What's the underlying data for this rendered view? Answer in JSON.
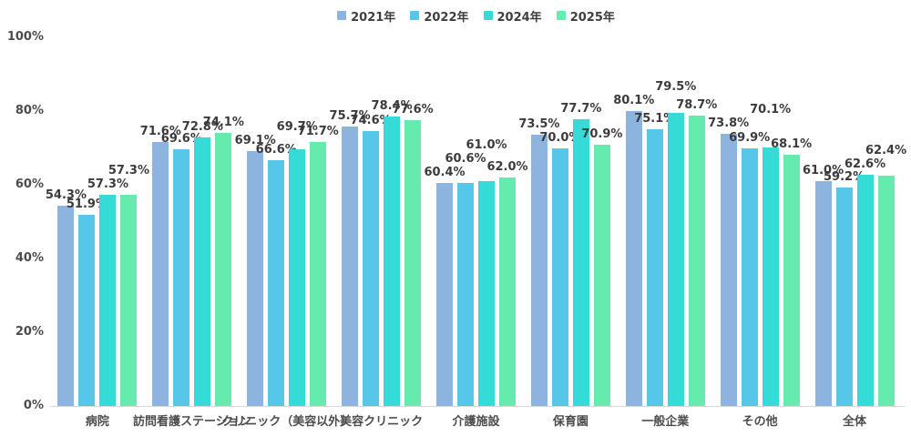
{
  "chart_data": {
    "type": "bar",
    "title": "",
    "categories": [
      "病院",
      "訪問看護ステーション",
      "クリニック（美容以外）",
      "美容クリニック",
      "介護施設",
      "保育園",
      "一般企業",
      "その他",
      "全体"
    ],
    "series": [
      {
        "name": "2021年",
        "color": "#8DB3DF",
        "values": [
          54.3,
          71.6,
          69.1,
          75.7,
          60.4,
          73.5,
          80.1,
          73.8,
          61.0
        ]
      },
      {
        "name": "2022年",
        "color": "#56C7E9",
        "values": [
          51.9,
          69.6,
          66.6,
          74.6,
          60.6,
          70.0,
          75.1,
          69.9,
          59.2
        ]
      },
      {
        "name": "2024年",
        "color": "#36DAD7",
        "values": [
          57.3,
          72.8,
          69.7,
          78.4,
          61.0,
          77.7,
          79.5,
          70.1,
          62.6
        ]
      },
      {
        "name": "2025年",
        "color": "#66EBAF",
        "values": [
          57.3,
          74.1,
          71.7,
          77.6,
          62.0,
          70.9,
          78.7,
          68.1,
          62.4
        ]
      }
    ],
    "ylim": [
      0,
      100
    ],
    "y_ticks": [
      0,
      20,
      40,
      60,
      80,
      100
    ],
    "y_tick_suffix": "%",
    "value_label_suffix": "%",
    "value_label_decimals": 1,
    "grid": false,
    "legend_position": "top",
    "axis_line_color": "#d8d8d8"
  }
}
